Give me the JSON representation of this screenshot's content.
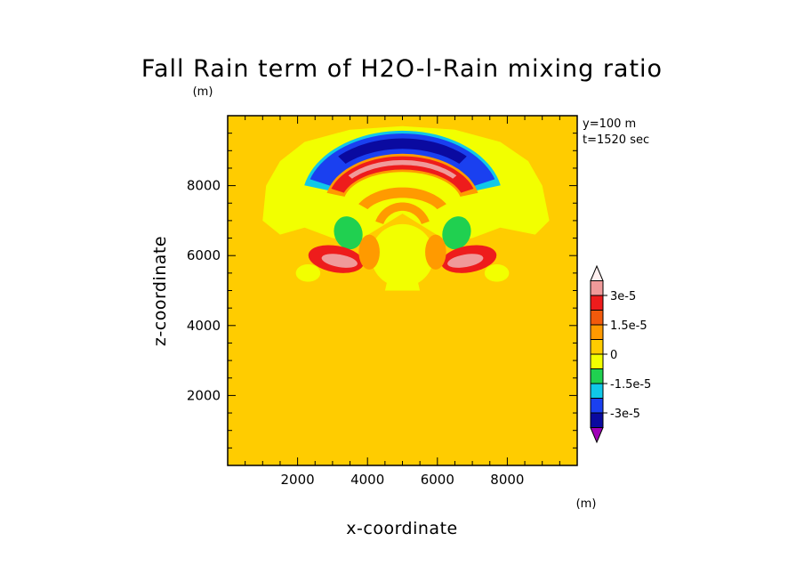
{
  "chart_data": {
    "type": "heatmap",
    "title": "Fall Rain term of H2O-l-Rain mixing ratio",
    "xlabel": "x-coordinate",
    "ylabel": "z-coordinate",
    "x_unit": "(m)",
    "y_unit": "(m)",
    "xlim": [
      0,
      10000
    ],
    "ylim": [
      0,
      10000
    ],
    "x_ticks": [
      "2000",
      "4000",
      "6000",
      "8000"
    ],
    "y_ticks": [
      "2000",
      "4000",
      "6000",
      "8000"
    ],
    "annotations": [
      "y=100 m",
      "t=1520 sec"
    ],
    "colorbar": {
      "unit": "(m)",
      "tick_labels": [
        "3e-5",
        "1.5e-5",
        "0",
        "-1.5e-5",
        "-3e-5"
      ],
      "levels_top_to_bottom": [
        {
          "min": 3e-05,
          "max": null,
          "color": "#fff0f0"
        },
        {
          "min": 2.25e-05,
          "max": 3e-05,
          "color": "#f09a9a"
        },
        {
          "min": 1.5e-05,
          "max": 2.25e-05,
          "color": "#ee1c1c"
        },
        {
          "min": 7.5e-06,
          "max": 1.5e-05,
          "color": "#f25a0c"
        },
        {
          "min": 0.0,
          "max": 7.5e-06,
          "color": "#ff9a00"
        },
        {
          "min": -7.5e-06,
          "max": 0.0,
          "color": "#ffcc00"
        },
        {
          "min": -1.5e-05,
          "max": -7.5e-06,
          "color": "#f2ff00"
        },
        {
          "min": -2.25e-05,
          "max": -1.5e-05,
          "color": "#20d050"
        },
        {
          "min": -3e-05,
          "max": -2.25e-05,
          "color": "#10c8e8"
        },
        {
          "min": -3.75e-05,
          "max": -3e-05,
          "color": "#1a40f0"
        },
        {
          "min": -4.5e-05,
          "max": -3.75e-05,
          "color": "#0a0aa0"
        },
        {
          "min": null,
          "max": -4.5e-05,
          "color": "#a000b8"
        }
      ]
    },
    "background_field_value": 2e-06,
    "features": [
      {
        "name": "upper positive arc",
        "x_range": [
          3000,
          7000
        ],
        "z_range": [
          7800,
          8800
        ],
        "peak": 2.5e-05
      },
      {
        "name": "upper negative arc",
        "x_range": [
          2300,
          7700
        ],
        "z_range": [
          7500,
          9300
        ],
        "peak": -4e-05
      },
      {
        "name": "left lower positive lobe",
        "x_range": [
          2300,
          3900
        ],
        "z_range": [
          5700,
          6300
        ],
        "peak": 3e-05
      },
      {
        "name": "right lower positive lobe",
        "x_range": [
          6000,
          7500
        ],
        "z_range": [
          5700,
          6300
        ],
        "peak": 3e-05
      },
      {
        "name": "left negative blob",
        "x_range": [
          3000,
          3900
        ],
        "z_range": [
          6200,
          7100
        ],
        "peak": -1.8e-05
      },
      {
        "name": "right negative blob",
        "x_range": [
          6000,
          6800
        ],
        "z_range": [
          6200,
          7100
        ],
        "peak": -1.8e-05
      }
    ]
  }
}
